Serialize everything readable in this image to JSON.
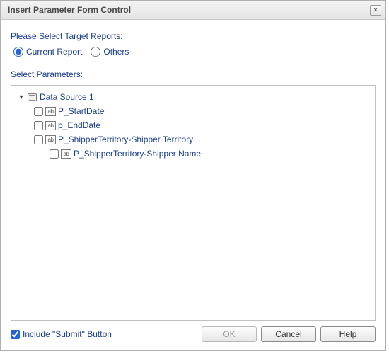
{
  "window": {
    "title": "Insert Parameter Form Control"
  },
  "labels": {
    "target_reports": "Please Select Target Reports:",
    "select_parameters": "Select Parameters:"
  },
  "target_reports": {
    "current": {
      "label": "Current Report",
      "checked": true
    },
    "others": {
      "label": "Others",
      "checked": false
    }
  },
  "tree": {
    "root": {
      "label": "Data Source 1",
      "expanded": true
    },
    "params": [
      {
        "label": "P_StartDate",
        "checked": false,
        "indent": 1
      },
      {
        "label": "p_EndDate",
        "checked": false,
        "indent": 1
      },
      {
        "label": "P_ShipperTerritory-Shipper Territory",
        "checked": false,
        "indent": 1
      },
      {
        "label": "P_ShipperTerritory-Shipper Name",
        "checked": false,
        "indent": 2
      }
    ]
  },
  "include_submit": {
    "label": "Include \"Submit\" Button",
    "checked": true
  },
  "buttons": {
    "ok": "OK",
    "cancel": "Cancel",
    "help": "Help"
  },
  "colors": {
    "text_primary": "#1a3e8b",
    "border": "#c0c0c0",
    "accent": "#2466d1"
  }
}
